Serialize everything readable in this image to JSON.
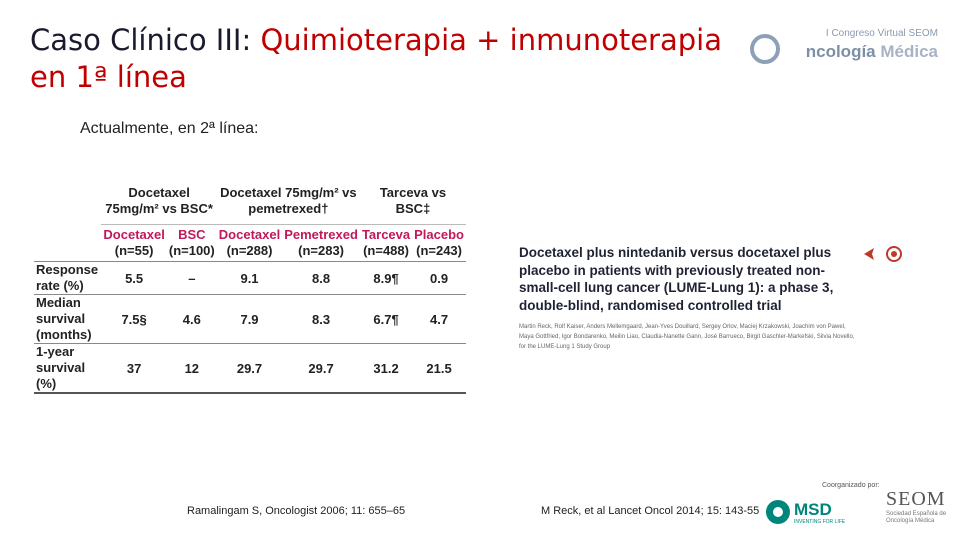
{
  "header": {
    "title_prefix": "Caso Clínico III: ",
    "title_highlight": "Quimioterapia + inmunoterapia",
    "title_line2": "en 1ª línea"
  },
  "logo": {
    "small": "I Congreso Virtual SEOM",
    "big_part1": "ncología",
    "big_part2": " Médica"
  },
  "subtitle": "Actualmente, en 2ª línea:",
  "table": {
    "groups": [
      "Docetaxel 75mg/m² vs BSC*",
      "Docetaxel 75mg/m² vs pemetrexed†",
      "Tarceva vs BSC‡"
    ],
    "arms": [
      {
        "name": "Docetaxel",
        "n": "(n=55)"
      },
      {
        "name": "BSC",
        "n": "(n=100)"
      },
      {
        "name": "Docetaxel",
        "n": "(n=288)"
      },
      {
        "name": "Pemetrexed",
        "n": "(n=283)"
      },
      {
        "name": "Tarceva",
        "n": "(n=488)"
      },
      {
        "name": "Placebo",
        "n": "(n=243)"
      }
    ],
    "rows": [
      {
        "label": "Response rate (%)",
        "values": [
          "5.5",
          "–",
          "9.1",
          "8.8",
          "8.9¶",
          "0.9"
        ]
      },
      {
        "label": "Median survival (months)",
        "values": [
          "7.5§",
          "4.6",
          "7.9",
          "8.3",
          "6.7¶",
          "4.7"
        ]
      },
      {
        "label": "1-year survival (%)",
        "values": [
          "37",
          "12",
          "29.7",
          "29.7",
          "31.2",
          "21.5"
        ]
      }
    ]
  },
  "article": {
    "title": "Docetaxel plus nintedanib versus docetaxel plus placebo in patients with previously treated non-small-cell lung cancer (LUME-Lung 1): a phase 3, double-blind, randomised controlled trial",
    "authors": "Martin Reck, Rolf Kaiser, Anders Mellemgaard, Jean-Yves Douillard, Sergey Orlov, Maciej Krzakowski, Joachim von Pawel, Maya Gottfried, Igor Bondarenko, Meilin Liao, Claudia-Nanette Gann, José Barrueco, Birgit Gaschler-Markefski, Silvia Novello, for the LUME-Lung 1 Study Group"
  },
  "references": {
    "left": "Ramalingam S, Oncologist 2006; 11: 655–65",
    "right": "M Reck, et al Lancet Oncol 2014; 15: 143-55"
  },
  "sponsors": {
    "organized_by": "Coorganizado por:",
    "msd": "MSD",
    "msd_sub": "INVENTING FOR LIFE",
    "seom": "SEOM",
    "seom_sub": "Sociedad Española de Oncología Médica"
  },
  "colors": {
    "accent": "#c00000",
    "arm_color": "#c2185b",
    "msd_green": "#00857c"
  }
}
